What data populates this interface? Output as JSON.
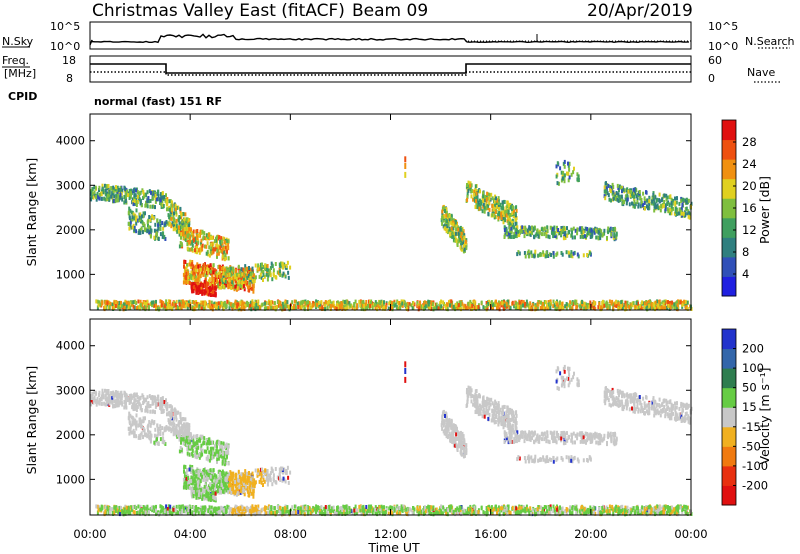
{
  "header": {
    "title": "Christmas Valley East (fitACF)",
    "beam": "Beam 09",
    "date": "20/Apr/2019"
  },
  "top_panel": {
    "left_label": "N.Sky",
    "left_ticks": [
      "10^5",
      "10^0"
    ],
    "right_label": "N.Search",
    "right_ticks": [
      "10^5",
      "10^0"
    ]
  },
  "freq_panel": {
    "left_label_1": "Freq.",
    "left_label_2": "[MHz]",
    "left_ticks": [
      "18",
      "8"
    ],
    "right_label": "Nave",
    "right_ticks": [
      "60",
      "0"
    ]
  },
  "cpid": {
    "label": "CPID",
    "value": "normal (fast) 151 RF"
  },
  "chart_data": [
    {
      "type": "heatmap",
      "name": "power",
      "ylabel": "Slant Range [km]",
      "yticks": [
        "4000",
        "3000",
        "2000",
        "1000"
      ],
      "ylim": [
        200,
        4600
      ],
      "colorbar_label": "Power [dB]",
      "colorbar_ticks": [
        "28",
        "24",
        "20",
        "16",
        "12",
        "8",
        "4"
      ],
      "colorbar_colors": [
        "#2020e0",
        "#3050b8",
        "#2f7f7f",
        "#3f9f5f",
        "#7fbf3f",
        "#e0d020",
        "#f09010",
        "#ee5010",
        "#e01010"
      ]
    },
    {
      "type": "heatmap",
      "name": "velocity",
      "ylabel": "Slant Range [km]",
      "yticks": [
        "4000",
        "3000",
        "2000",
        "1000"
      ],
      "ylim": [
        200,
        4600
      ],
      "colorbar_label": "Velocity [m s⁻¹]",
      "colorbar_ticks": [
        "200",
        "100",
        "50",
        "15",
        "-15",
        "-50",
        "-100",
        "-200"
      ],
      "colorbar_colors": [
        "#2233cc",
        "#3366aa",
        "#2e7d4f",
        "#66cc44",
        "#c8c8c8",
        "#f0b020",
        "#f07a10",
        "#e83010",
        "#e01010"
      ]
    }
  ],
  "xaxis": {
    "ticks": [
      "00:00",
      "04:00",
      "08:00",
      "12:00",
      "16:00",
      "20:00",
      "00:00"
    ],
    "label": "Time UT"
  }
}
